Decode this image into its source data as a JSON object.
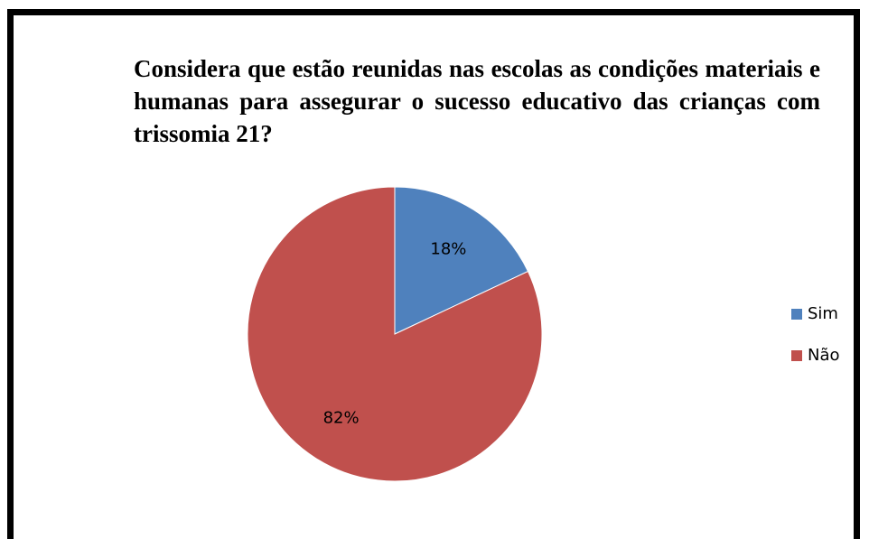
{
  "chart_data": {
    "type": "pie",
    "title": "Considera que estão reunidas nas escolas as condições materiais e humanas para assegurar o sucesso educativo das crianças com trissomia 21?",
    "categories": [
      "Sim",
      "Não"
    ],
    "values": [
      18,
      82
    ],
    "value_labels": [
      "18%",
      "82%"
    ],
    "colors": [
      "#4f81bd",
      "#c0504d"
    ],
    "legend": "right"
  }
}
